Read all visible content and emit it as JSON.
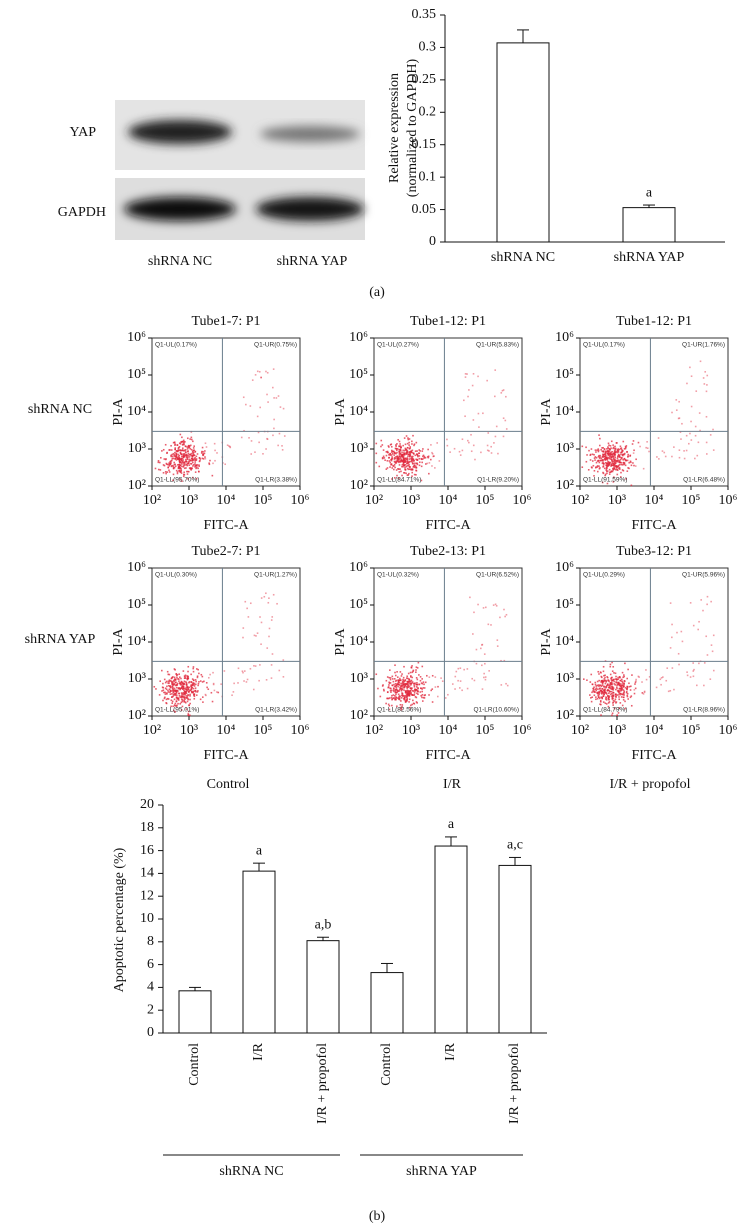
{
  "labels": {
    "panel_a": "(a)",
    "panel_b": "(b)"
  },
  "blot": {
    "rows": [
      "YAP",
      "GAPDH"
    ],
    "lanes": [
      "shRNA NC",
      "shRNA YAP"
    ]
  },
  "flow_grid": {
    "rows": [
      "shRNA NC",
      "shRNA YAP"
    ],
    "columns": [
      "Control",
      "I/R",
      "I/R + propofol"
    ]
  },
  "chart_data": [
    {
      "type": "bar",
      "ylabel": [
        "Relative expression",
        "(normalized to GAPDH)"
      ],
      "categories": [
        "shRNA NC",
        "shRNA YAP"
      ],
      "values": [
        0.307,
        0.053
      ],
      "errors": [
        0.02,
        0.004
      ],
      "annotations": [
        null,
        "a"
      ],
      "color": "#ffffff",
      "ylim": [
        0,
        0.35
      ],
      "yticks": [
        0,
        0.05,
        0.1,
        0.15,
        0.2,
        0.25,
        0.3,
        0.35
      ]
    },
    {
      "type": "scatter",
      "title": "Tube1-7: P1",
      "xlabel": "FITC-A",
      "ylabel": "PI-A",
      "xlog": true,
      "ylog": true,
      "xlim": [
        100,
        1000000
      ],
      "ylim": [
        100,
        1000000
      ],
      "xticks": [
        {
          "value": 100,
          "label": "10²"
        },
        {
          "value": 1000,
          "label": "10³"
        },
        {
          "value": 10000,
          "label": "10⁴"
        },
        {
          "value": 100000,
          "label": "10⁵"
        },
        {
          "value": 1000000,
          "label": "10⁶"
        }
      ],
      "yticks": [
        {
          "value": 100,
          "label": "10²"
        },
        {
          "value": 1000,
          "label": "10³"
        },
        {
          "value": 10000,
          "label": "10⁴"
        },
        {
          "value": 100000,
          "label": "10⁵"
        },
        {
          "value": 1000000,
          "label": "10⁶"
        }
      ],
      "gate": [
        8000,
        3000
      ],
      "color": "#e0283c",
      "quadrants": {
        "UL": "Q1-UL(0.17%)",
        "UR": "Q1-UR(0.75%)",
        "LL": "Q1-LL(95.70%)",
        "LR": "Q1-LR(3.38%)"
      }
    },
    {
      "type": "scatter",
      "title": "Tube1-12: P1",
      "xlabel": "FITC-A",
      "ylabel": "PI-A",
      "xlog": true,
      "ylog": true,
      "xlim": [
        100,
        1000000
      ],
      "ylim": [
        100,
        1000000
      ],
      "xticks": [
        {
          "value": 100,
          "label": "10²"
        },
        {
          "value": 1000,
          "label": "10³"
        },
        {
          "value": 10000,
          "label": "10⁴"
        },
        {
          "value": 100000,
          "label": "10⁵"
        },
        {
          "value": 1000000,
          "label": "10⁶"
        }
      ],
      "yticks": [
        {
          "value": 100,
          "label": "10²"
        },
        {
          "value": 1000,
          "label": "10³"
        },
        {
          "value": 10000,
          "label": "10⁴"
        },
        {
          "value": 100000,
          "label": "10⁵"
        },
        {
          "value": 1000000,
          "label": "10⁶"
        }
      ],
      "gate": [
        8000,
        3000
      ],
      "color": "#e0283c",
      "quadrants": {
        "UL": "Q1-UL(0.27%)",
        "UR": "Q1-UR(5.83%)",
        "LL": "Q1-LL(84.71%)",
        "LR": "Q1-LR(9.20%)"
      }
    },
    {
      "type": "scatter",
      "title": "Tube1-12: P1",
      "xlabel": "FITC-A",
      "ylabel": "PI-A",
      "xlog": true,
      "ylog": true,
      "xlim": [
        100,
        1000000
      ],
      "ylim": [
        100,
        1000000
      ],
      "xticks": [
        {
          "value": 100,
          "label": "10²"
        },
        {
          "value": 1000,
          "label": "10³"
        },
        {
          "value": 10000,
          "label": "10⁴"
        },
        {
          "value": 100000,
          "label": "10⁵"
        },
        {
          "value": 1000000,
          "label": "10⁶"
        }
      ],
      "yticks": [
        {
          "value": 100,
          "label": "10²"
        },
        {
          "value": 1000,
          "label": "10³"
        },
        {
          "value": 10000,
          "label": "10⁴"
        },
        {
          "value": 100000,
          "label": "10⁵"
        },
        {
          "value": 1000000,
          "label": "10⁶"
        }
      ],
      "gate": [
        8000,
        3000
      ],
      "color": "#e0283c",
      "quadrants": {
        "UL": "Q1-UL(0.17%)",
        "UR": "Q1-UR(1.76%)",
        "LL": "Q1-LL(91.59%)",
        "LR": "Q1-LR(6.48%)"
      }
    },
    {
      "type": "scatter",
      "title": "Tube2-7: P1",
      "xlabel": "FITC-A",
      "ylabel": "PI-A",
      "xlog": true,
      "ylog": true,
      "xlim": [
        100,
        1000000
      ],
      "ylim": [
        100,
        1000000
      ],
      "xticks": [
        {
          "value": 100,
          "label": "10²"
        },
        {
          "value": 1000,
          "label": "10³"
        },
        {
          "value": 10000,
          "label": "10⁴"
        },
        {
          "value": 100000,
          "label": "10⁵"
        },
        {
          "value": 1000000,
          "label": "10⁶"
        }
      ],
      "yticks": [
        {
          "value": 100,
          "label": "10²"
        },
        {
          "value": 1000,
          "label": "10³"
        },
        {
          "value": 10000,
          "label": "10⁴"
        },
        {
          "value": 100000,
          "label": "10⁵"
        },
        {
          "value": 1000000,
          "label": "10⁶"
        }
      ],
      "gate": [
        8000,
        3000
      ],
      "color": "#e0283c",
      "quadrants": {
        "UL": "Q1-UL(0.30%)",
        "UR": "Q1-UR(1.27%)",
        "LL": "Q1-LL(95.01%)",
        "LR": "Q1-LR(3.42%)"
      }
    },
    {
      "type": "scatter",
      "title": "Tube2-13: P1",
      "xlabel": "FITC-A",
      "ylabel": "PI-A",
      "xlog": true,
      "ylog": true,
      "xlim": [
        100,
        1000000
      ],
      "ylim": [
        100,
        1000000
      ],
      "xticks": [
        {
          "value": 100,
          "label": "10²"
        },
        {
          "value": 1000,
          "label": "10³"
        },
        {
          "value": 10000,
          "label": "10⁴"
        },
        {
          "value": 100000,
          "label": "10⁵"
        },
        {
          "value": 1000000,
          "label": "10⁶"
        }
      ],
      "yticks": [
        {
          "value": 100,
          "label": "10²"
        },
        {
          "value": 1000,
          "label": "10³"
        },
        {
          "value": 10000,
          "label": "10⁴"
        },
        {
          "value": 100000,
          "label": "10⁵"
        },
        {
          "value": 1000000,
          "label": "10⁶"
        }
      ],
      "gate": [
        8000,
        3000
      ],
      "color": "#e0283c",
      "quadrants": {
        "UL": "Q1-UL(0.32%)",
        "UR": "Q1-UR(6.52%)",
        "LL": "Q1-LL(82.56%)",
        "LR": "Q1-LR(10.60%)"
      }
    },
    {
      "type": "scatter",
      "title": "Tube3-12: P1",
      "xlabel": "FITC-A",
      "ylabel": "PI-A",
      "xlog": true,
      "ylog": true,
      "xlim": [
        100,
        1000000
      ],
      "ylim": [
        100,
        1000000
      ],
      "xticks": [
        {
          "value": 100,
          "label": "10²"
        },
        {
          "value": 1000,
          "label": "10³"
        },
        {
          "value": 10000,
          "label": "10⁴"
        },
        {
          "value": 100000,
          "label": "10⁵"
        },
        {
          "value": 1000000,
          "label": "10⁶"
        }
      ],
      "yticks": [
        {
          "value": 100,
          "label": "10²"
        },
        {
          "value": 1000,
          "label": "10³"
        },
        {
          "value": 10000,
          "label": "10⁴"
        },
        {
          "value": 100000,
          "label": "10⁵"
        },
        {
          "value": 1000000,
          "label": "10⁶"
        }
      ],
      "gate": [
        8000,
        3000
      ],
      "color": "#e0283c",
      "quadrants": {
        "UL": "Q1-UL(0.29%)",
        "UR": "Q1-UR(5.96%)",
        "LL": "Q1-LL(84.79%)",
        "LR": "Q1-LR(8.96%)"
      }
    },
    {
      "type": "bar",
      "ylabel": [
        "Apoptotic percentage (%)"
      ],
      "categories": [
        "Control",
        "I/R",
        "I/R + propofol",
        "Control",
        "I/R",
        "I/R + propofol"
      ],
      "values": [
        3.7,
        14.2,
        8.1,
        5.3,
        16.4,
        14.7
      ],
      "errors": [
        0.3,
        0.7,
        0.3,
        0.8,
        0.8,
        0.7
      ],
      "annotations": [
        null,
        "a",
        "a,b",
        null,
        "a",
        "a,c"
      ],
      "groups": [
        "shRNA NC",
        "shRNA YAP"
      ],
      "color": "#ffffff",
      "ylim": [
        0,
        20
      ],
      "yticks": [
        0,
        2,
        4,
        6,
        8,
        10,
        12,
        14,
        16,
        18,
        20
      ]
    }
  ]
}
